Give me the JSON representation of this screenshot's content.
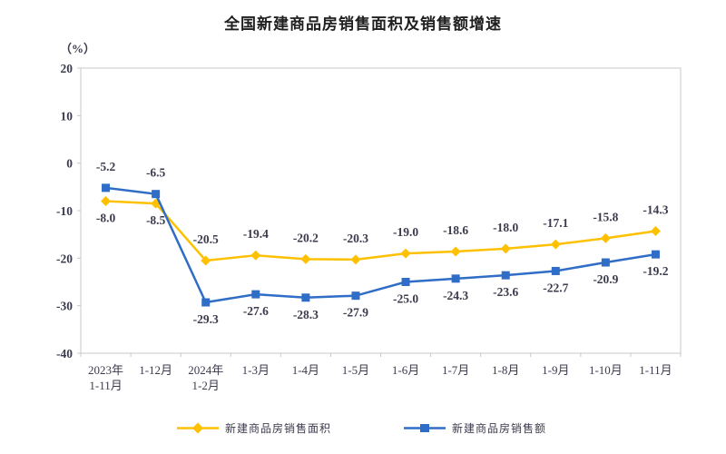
{
  "title": "全国新建商品房销售面积及销售额增速",
  "unit_label": "（%）",
  "text_color": "#3B3B4E",
  "axis_color": "#C8C8C8",
  "chart_data": {
    "type": "line",
    "title": "全国新建商品房销售面积及销售额增速",
    "ylabel": "（%）",
    "xlabel": "",
    "grid": false,
    "legend_position": "bottom",
    "ylim": [
      -40,
      20
    ],
    "yticks": [
      20,
      10,
      0,
      -10,
      -20,
      -30,
      -40
    ],
    "categories": [
      [
        "2023年",
        "1-11月"
      ],
      [
        "1-12月"
      ],
      [
        "2024年",
        "1-2月"
      ],
      [
        "1-3月"
      ],
      [
        "1-4月"
      ],
      [
        "1-5月"
      ],
      [
        "1-6月"
      ],
      [
        "1-7月"
      ],
      [
        "1-8月"
      ],
      [
        "1-9月"
      ],
      [
        "1-10月"
      ],
      [
        "1-11月"
      ]
    ],
    "series": [
      {
        "id": "area",
        "name": "新建商品房销售面积",
        "color": "#FFC000",
        "marker": "diamond",
        "values": [
          -8.0,
          -8.5,
          -20.5,
          -19.4,
          -20.2,
          -20.3,
          -19.0,
          -18.6,
          -18.0,
          -17.1,
          -15.8,
          -14.3
        ],
        "label_sides": [
          "below",
          "below",
          "above",
          "above",
          "above",
          "above",
          "above",
          "above",
          "above",
          "above",
          "above",
          "above"
        ]
      },
      {
        "id": "amount",
        "name": "新建商品房销售额",
        "color": "#2F6DC6",
        "marker": "square",
        "values": [
          -5.2,
          -6.5,
          -29.3,
          -27.6,
          -28.3,
          -27.9,
          -25.0,
          -24.3,
          -23.6,
          -22.7,
          -20.9,
          -19.2
        ],
        "label_sides": [
          "above",
          "above",
          "below",
          "below",
          "below",
          "below",
          "below",
          "below",
          "below",
          "below",
          "below",
          "below"
        ]
      }
    ]
  }
}
